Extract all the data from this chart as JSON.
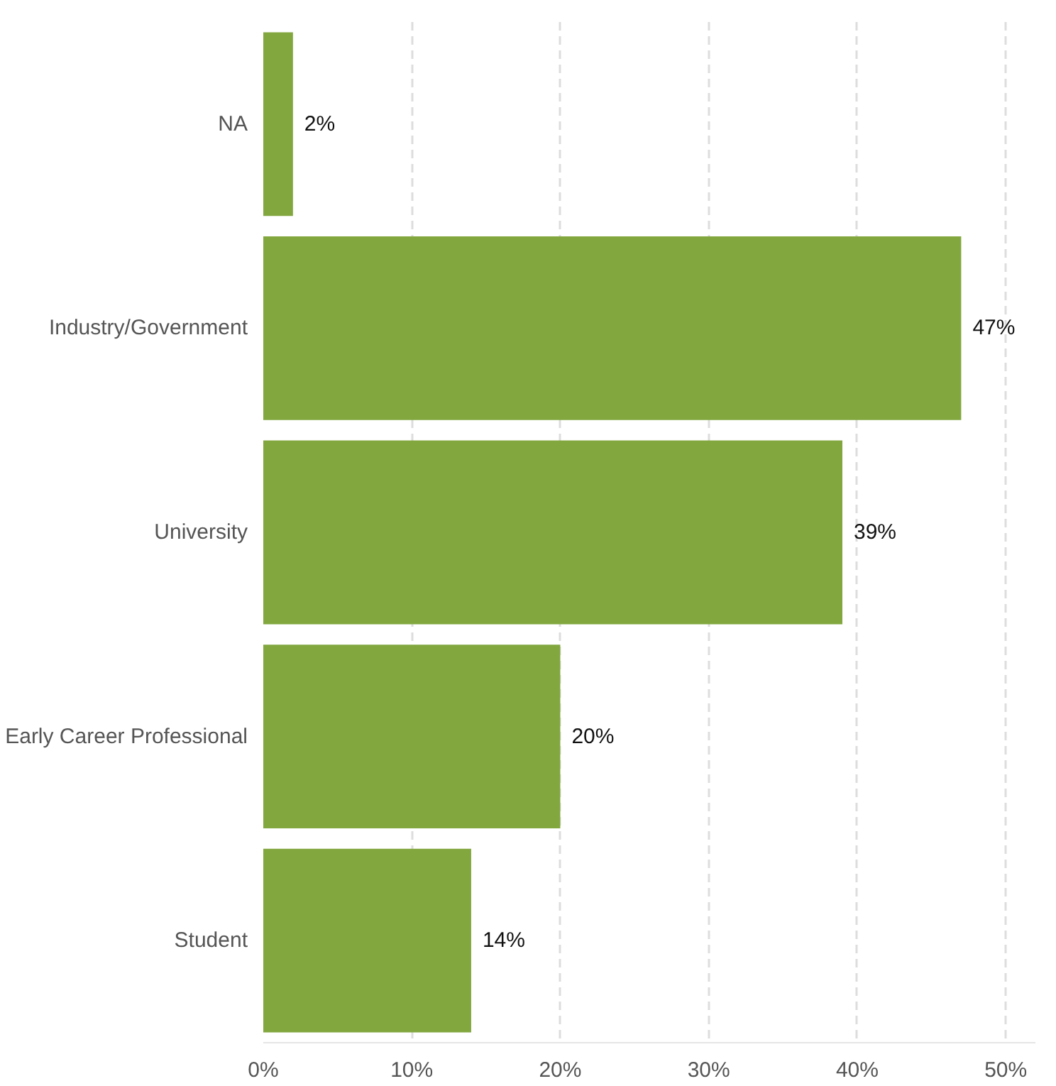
{
  "chart_data": {
    "type": "bar",
    "orientation": "horizontal",
    "categories": [
      "NA",
      "Industry/Government",
      "University",
      "Early Career Professional",
      "Student"
    ],
    "values": [
      2,
      47,
      39,
      20,
      14
    ],
    "value_labels": [
      "2%",
      "47%",
      "39%",
      "20%",
      "14%"
    ],
    "color": "#82a73f",
    "xlim": [
      0,
      52
    ],
    "xticks": [
      {
        "value": 0,
        "label": "0%"
      },
      {
        "value": 10,
        "label": "10%"
      },
      {
        "value": 20,
        "label": "20%"
      },
      {
        "value": 30,
        "label": "30%"
      },
      {
        "value": 40,
        "label": "40%"
      },
      {
        "value": 50,
        "label": "50%"
      }
    ],
    "grid": "x"
  }
}
